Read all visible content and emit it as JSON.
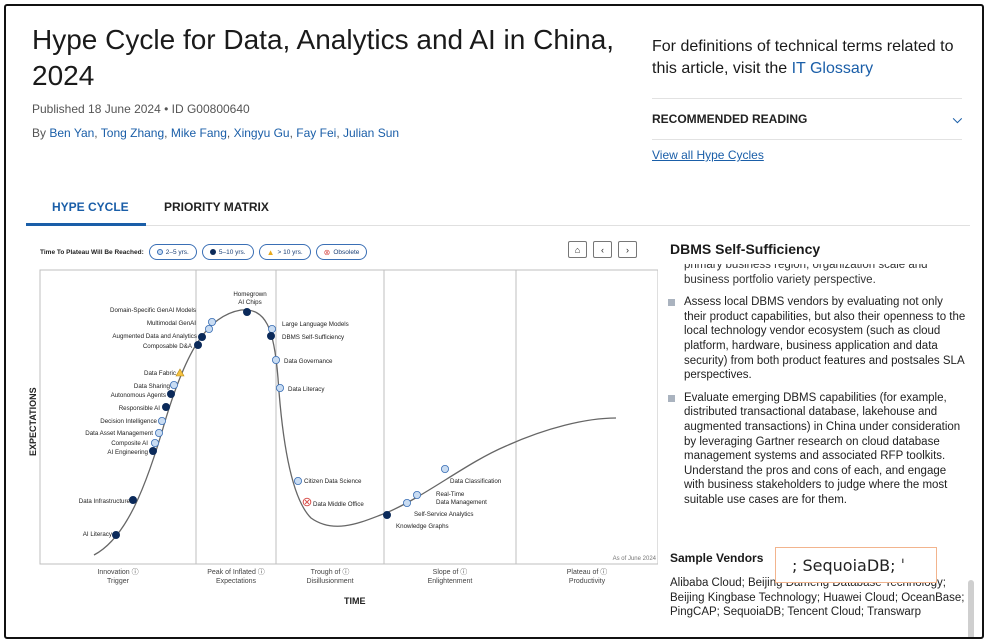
{
  "header": {
    "title": "Hype Cycle for Data, Analytics and AI in China, 2024",
    "published": "Published 18 June 2024 • ID G00800640",
    "by_prefix": "By",
    "authors": [
      "Ben Yan",
      "Tong Zhang",
      "Mike Fang",
      "Xingyu Gu",
      "Fay Fei",
      "Julian Sun"
    ]
  },
  "aside": {
    "glossary_text": "For definitions of technical terms related to this article, visit the",
    "glossary_link": "IT Glossary",
    "recommended_label": "RECOMMENDED READING",
    "view_all_label": "View all Hype Cycles"
  },
  "tabs": [
    {
      "label": "HYPE CYCLE",
      "active": true
    },
    {
      "label": "PRIORITY MATRIX",
      "active": false
    }
  ],
  "legend": {
    "label": "Time To Plateau Will Be Reached:",
    "items": [
      {
        "label": "2–5 yrs.",
        "icon": "light-circle-icon",
        "color": "#c9dcf2"
      },
      {
        "label": "5–10 yrs.",
        "icon": "dark-circle-icon",
        "color": "#0b2a5a"
      },
      {
        "label": "> 10 yrs.",
        "icon": "triangle-icon",
        "color": "#f5c242"
      },
      {
        "label": "Obsolete",
        "icon": "obsolete-icon",
        "color": "#d9534f"
      }
    ]
  },
  "nav": {
    "home_icon": "home-icon",
    "prev_icon": "chevron-left-icon",
    "next_icon": "chevron-right-icon"
  },
  "chart": {
    "y_axis": "EXPECTATIONS",
    "x_axis": "TIME",
    "as_of": "As of June 2024",
    "phases": [
      {
        "line1": "Innovation",
        "line2": "Trigger"
      },
      {
        "line1": "Peak of Inflated",
        "line2": "Expectations"
      },
      {
        "line1": "Trough of",
        "line2": "Disillusionment"
      },
      {
        "line1": "Slope of",
        "line2": "Enlightenment"
      },
      {
        "line1": "Plateau of",
        "line2": "Productivity"
      }
    ],
    "technologies": [
      {
        "name": "AI Literacy",
        "marker": "dark"
      },
      {
        "name": "Data Infrastructure",
        "marker": "dark"
      },
      {
        "name": "AI Engineering",
        "marker": "dark"
      },
      {
        "name": "Composite AI",
        "marker": "light"
      },
      {
        "name": "Data Asset Management",
        "marker": "light"
      },
      {
        "name": "Decision Intelligence",
        "marker": "light"
      },
      {
        "name": "Responsible AI",
        "marker": "dark"
      },
      {
        "name": "Autonomous Agents",
        "marker": "dark"
      },
      {
        "name": "Data Sharing",
        "marker": "light"
      },
      {
        "name": "Data Fabric",
        "marker": "triangle"
      },
      {
        "name": "Composable D&A",
        "marker": "dark"
      },
      {
        "name": "Augmented Data and Analytics",
        "marker": "dark"
      },
      {
        "name": "Multimodal GenAI",
        "marker": "light"
      },
      {
        "name": "Domain-Specific GenAI Models",
        "marker": "light"
      },
      {
        "name": "Homegrown AI Chips",
        "marker": "dark"
      },
      {
        "name": "Large Language Models",
        "marker": "light"
      },
      {
        "name": "DBMS Self-Sufficiency",
        "marker": "dark"
      },
      {
        "name": "Data Governance",
        "marker": "light"
      },
      {
        "name": "Data Literacy",
        "marker": "light"
      },
      {
        "name": "Citizen Data Science",
        "marker": "light"
      },
      {
        "name": "Data Middle Office",
        "marker": "obsolete"
      },
      {
        "name": "Knowledge Graphs",
        "marker": "dark"
      },
      {
        "name": "Self-Service Analytics",
        "marker": "light"
      },
      {
        "name": "Real-Time Data Management",
        "marker": "light"
      },
      {
        "name": "Data Classification",
        "marker": "light"
      }
    ]
  },
  "detail": {
    "title": "DBMS Self-Sufficiency",
    "cut_text": "primary business region, organization scale and business portfolio variety perspective.",
    "paragraphs": [
      "Assess local DBMS vendors by evaluating not only their product capabilities, but also their openness to the local technology vendor ecosystem (such as cloud platform, hardware, business application and data security) from both product features and postsales SLA perspectives.",
      "Evaluate emerging DBMS capabilities (for example, distributed transactional database, lakehouse and augmented transactions) in China under consideration by leveraging Gartner research on cloud database management systems and associated RFP toolkits. Understand the pros and cons of each, and engage with business stakeholders to judge where the most suitable use cases are for them."
    ],
    "sample_vendors_label": "Sample Vendors",
    "sample_vendors": "Alibaba Cloud; Beijing Dameng Database Technology; Beijing Kingbase Technology; Huawei Cloud; OceanBase; PingCAP; SequoiaDB; Tencent Cloud; Transwarp",
    "highlight": "; SequoiaDB; ˈ"
  }
}
